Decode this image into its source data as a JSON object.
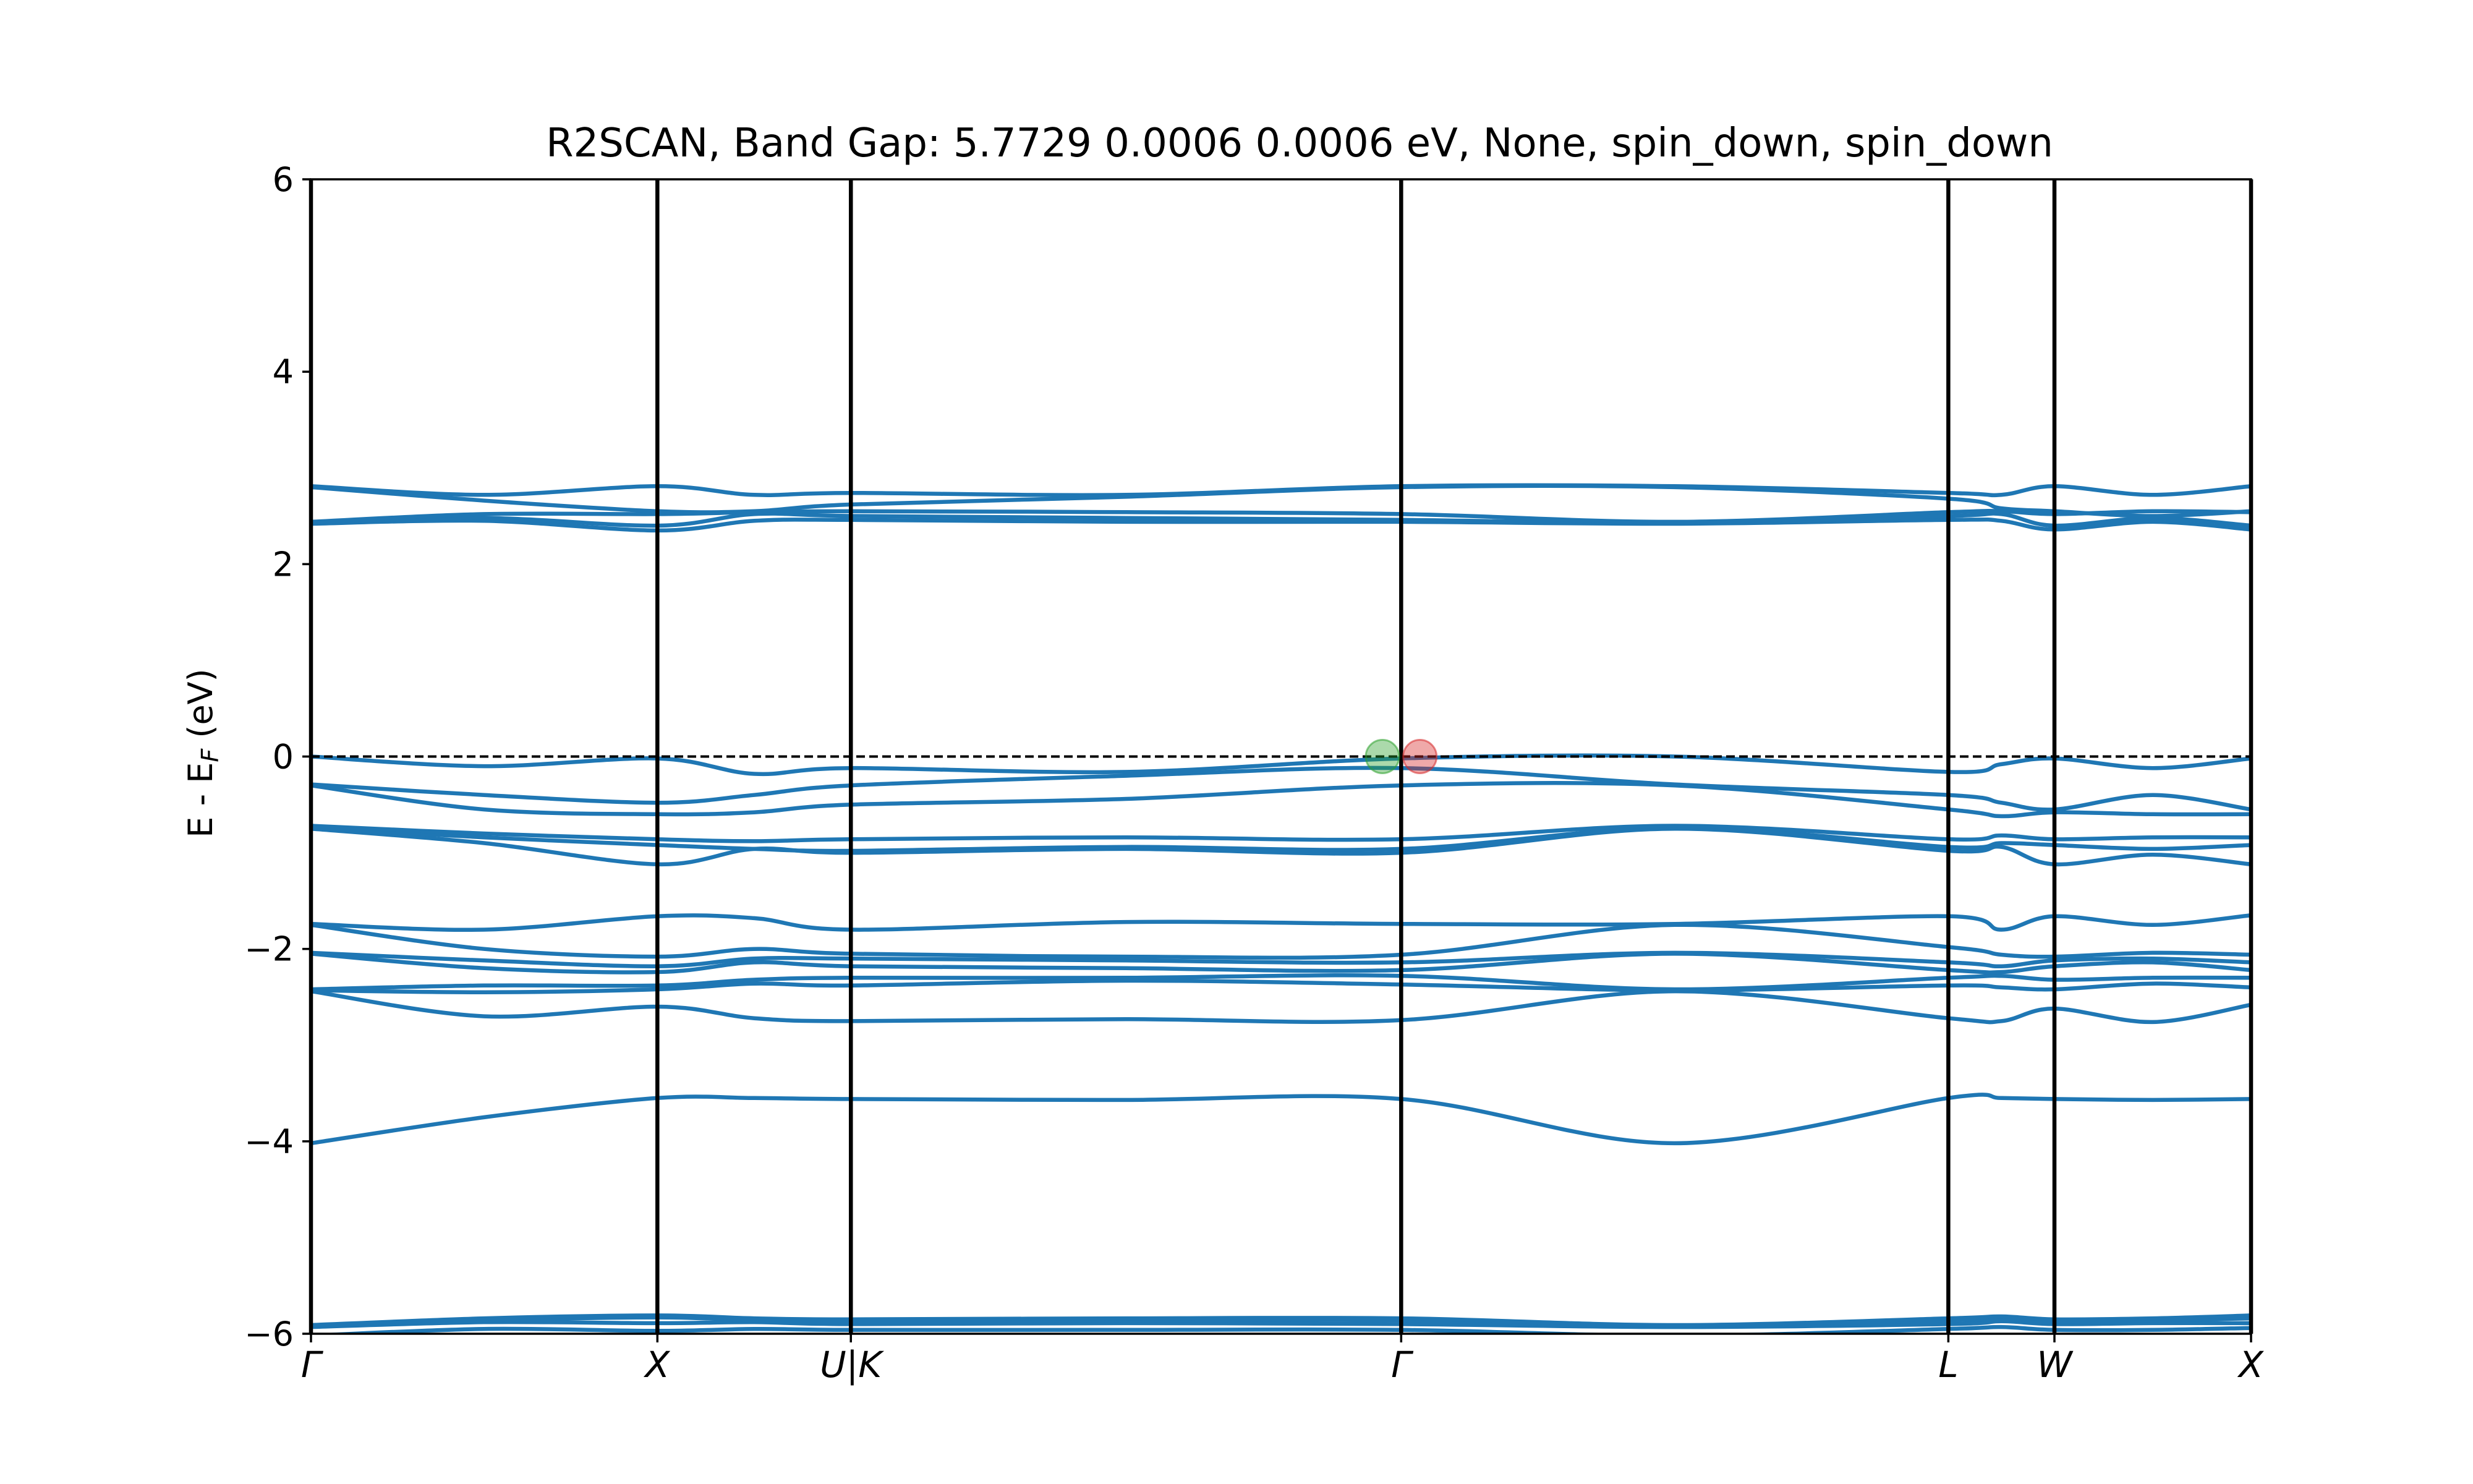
{
  "chart_data": {
    "type": "line",
    "title": "R2SCAN, Band Gap: 5.7729       0.0006       0.0006 eV, None, spin_down, spin_down",
    "ylabel_main": "E - E",
    "ylabel_sub": "F",
    "ylabel_unit": " (eV)",
    "ylim": [
      -6,
      6
    ],
    "yticks": [
      -6,
      -4,
      -2,
      0,
      2,
      4,
      6
    ],
    "ytick_labels": [
      "−6",
      "−4",
      "−2",
      "0",
      "2",
      "4",
      "6"
    ],
    "xlim": [
      0,
      18.65
    ],
    "kpoints": [
      {
        "label": "Γ",
        "x": 0
      },
      {
        "label": "X",
        "x": 3.33
      },
      {
        "label": "U|K",
        "x": 5.19
      },
      {
        "label": "Γ",
        "x": 10.48
      },
      {
        "label": "L",
        "x": 15.74
      },
      {
        "label": "W",
        "x": 16.76
      },
      {
        "label": "X",
        "x": 18.65
      }
    ],
    "fermi_level": 0,
    "markers": [
      {
        "name": "VBM",
        "x": 10.3,
        "y": 0.0,
        "color": "#2ca02c"
      },
      {
        "name": "CBM",
        "x": 10.66,
        "y": 0.0,
        "color": "#d62728"
      }
    ],
    "band_color": "#1f77b4",
    "bands": [
      [
        -6.02,
        -5.95,
        -5.97,
        -5.95,
        -5.96,
        -5.96,
        -5.96,
        -6.02,
        -5.95,
        -5.93,
        -5.96,
        -5.96,
        -5.94
      ],
      [
        -5.93,
        -5.88,
        -5.89,
        -5.88,
        -5.9,
        -5.89,
        -5.9,
        -5.93,
        -5.9,
        -5.87,
        -5.9,
        -5.89,
        -5.89
      ],
      [
        -5.92,
        -5.86,
        -5.83,
        -5.86,
        -5.87,
        -5.86,
        -5.86,
        -5.92,
        -5.86,
        -5.85,
        -5.87,
        -5.86,
        -5.84
      ],
      [
        -5.91,
        -5.84,
        -5.81,
        -5.84,
        -5.85,
        -5.84,
        -5.84,
        -5.91,
        -5.84,
        -5.82,
        -5.85,
        -5.84,
        -5.81
      ],
      [
        -4.02,
        -3.75,
        -3.55,
        -3.55,
        -3.56,
        -3.57,
        -3.56,
        -4.02,
        -3.55,
        -3.55,
        -3.56,
        -3.57,
        -3.56
      ],
      [
        -2.44,
        -2.7,
        -2.6,
        -2.72,
        -2.75,
        -2.73,
        -2.74,
        -2.44,
        -2.72,
        -2.75,
        -2.62,
        -2.76,
        -2.58
      ],
      [
        -2.43,
        -2.45,
        -2.42,
        -2.36,
        -2.38,
        -2.33,
        -2.37,
        -2.43,
        -2.38,
        -2.4,
        -2.42,
        -2.36,
        -2.4
      ],
      [
        -2.42,
        -2.38,
        -2.38,
        -2.32,
        -2.3,
        -2.3,
        -2.28,
        -2.42,
        -2.3,
        -2.28,
        -2.32,
        -2.3,
        -2.3
      ],
      [
        -2.05,
        -2.2,
        -2.24,
        -2.14,
        -2.18,
        -2.2,
        -2.22,
        -2.05,
        -2.22,
        -2.24,
        -2.18,
        -2.14,
        -2.22
      ],
      [
        -2.04,
        -2.12,
        -2.18,
        -2.1,
        -2.1,
        -2.12,
        -2.14,
        -2.04,
        -2.14,
        -2.18,
        -2.12,
        -2.1,
        -2.14
      ],
      [
        -1.75,
        -2.0,
        -2.08,
        -2.0,
        -2.05,
        -2.08,
        -2.06,
        -1.75,
        -1.98,
        -2.06,
        -2.08,
        -2.04,
        -2.06
      ],
      [
        -1.74,
        -1.8,
        -1.66,
        -1.68,
        -1.8,
        -1.72,
        -1.74,
        -1.74,
        -1.66,
        -1.8,
        -1.66,
        -1.75,
        -1.65
      ],
      [
        -0.75,
        -0.9,
        -1.12,
        -0.96,
        -1.0,
        -0.96,
        -1.0,
        -0.75,
        -0.98,
        -0.94,
        -1.12,
        -1.02,
        -1.12
      ],
      [
        -0.74,
        -0.84,
        -0.92,
        -0.96,
        -0.98,
        -0.94,
        -0.96,
        -0.74,
        -0.94,
        -0.9,
        -0.92,
        -0.96,
        -0.92
      ],
      [
        -0.72,
        -0.8,
        -0.86,
        -0.88,
        -0.86,
        -0.84,
        -0.86,
        -0.72,
        -0.86,
        -0.82,
        -0.86,
        -0.84,
        -0.84
      ],
      [
        -0.3,
        -0.55,
        -0.6,
        -0.58,
        -0.5,
        -0.44,
        -0.3,
        -0.3,
        -0.55,
        -0.62,
        -0.58,
        -0.6,
        -0.6
      ],
      [
        -0.29,
        -0.4,
        -0.48,
        -0.4,
        -0.3,
        -0.2,
        -0.12,
        -0.29,
        -0.4,
        -0.48,
        -0.55,
        -0.4,
        -0.55
      ],
      [
        0.0,
        -0.1,
        -0.02,
        -0.18,
        -0.12,
        -0.16,
        -0.02,
        0.0,
        -0.16,
        -0.08,
        -0.02,
        -0.12,
        -0.02
      ],
      [
        2.42,
        2.45,
        2.35,
        2.45,
        2.46,
        2.44,
        2.44,
        2.42,
        2.46,
        2.45,
        2.36,
        2.44,
        2.36
      ],
      [
        2.43,
        2.48,
        2.4,
        2.52,
        2.5,
        2.48,
        2.46,
        2.43,
        2.5,
        2.52,
        2.4,
        2.48,
        2.4
      ],
      [
        2.44,
        2.52,
        2.52,
        2.54,
        2.55,
        2.54,
        2.52,
        2.44,
        2.54,
        2.55,
        2.52,
        2.55,
        2.54
      ],
      [
        2.8,
        2.66,
        2.55,
        2.55,
        2.62,
        2.7,
        2.8,
        2.8,
        2.68,
        2.58,
        2.55,
        2.5,
        2.55
      ],
      [
        2.81,
        2.72,
        2.81,
        2.72,
        2.74,
        2.72,
        2.81,
        2.81,
        2.74,
        2.72,
        2.81,
        2.72,
        2.81
      ]
    ]
  }
}
